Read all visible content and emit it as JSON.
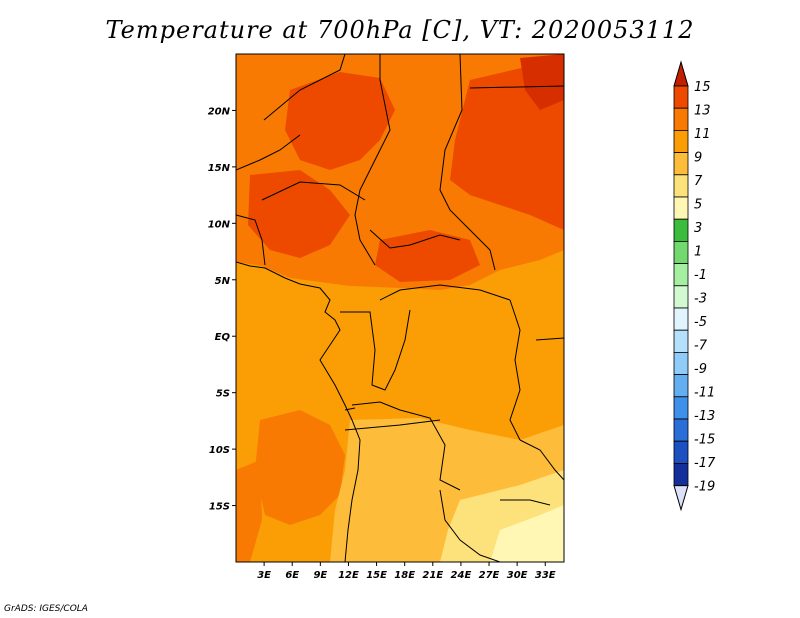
{
  "title": "Temperature at 700hPa [C], VT: 2020053112",
  "credit": "GrADS: IGES/COLA",
  "map": {
    "lon_range": [
      0,
      35
    ],
    "lat_range": [
      -20,
      25
    ],
    "lat_ticks": [
      {
        "lat": 20,
        "label": "20N"
      },
      {
        "lat": 15,
        "label": "15N"
      },
      {
        "lat": 10,
        "label": "10N"
      },
      {
        "lat": 5,
        "label": "5N"
      },
      {
        "lat": 0,
        "label": "EQ"
      },
      {
        "lat": -5,
        "label": "5S"
      },
      {
        "lat": -10,
        "label": "10S"
      },
      {
        "lat": -15,
        "label": "15S"
      }
    ],
    "lon_ticks": [
      {
        "lon": 3,
        "label": "3E"
      },
      {
        "lon": 6,
        "label": "6E"
      },
      {
        "lon": 9,
        "label": "9E"
      },
      {
        "lon": 12,
        "label": "12E"
      },
      {
        "lon": 15,
        "label": "15E"
      },
      {
        "lon": 18,
        "label": "18E"
      },
      {
        "lon": 21,
        "label": "21E"
      },
      {
        "lon": 24,
        "label": "24E"
      },
      {
        "lon": 27,
        "label": "27E"
      },
      {
        "lon": 30,
        "label": "30E"
      },
      {
        "lon": 33,
        "label": "33E"
      }
    ]
  },
  "colorbar": {
    "labels": [
      "15",
      "13",
      "11",
      "9",
      "7",
      "5",
      "3",
      "1",
      "-1",
      "-3",
      "-5",
      "-7",
      "-9",
      "-11",
      "-13",
      "-15",
      "-17",
      "-19"
    ],
    "colors": [
      "#d72e00",
      "#ed4a00",
      "#f87a02",
      "#fb9e06",
      "#fdbd3b",
      "#fde27c",
      "#fff7b3",
      "#3cbc3d",
      "#72d96f",
      "#a5efa1",
      "#d3f9d1",
      "#e1f5fe",
      "#b5e0fb",
      "#8fcdf8",
      "#62aef1",
      "#3f90e8",
      "#2a6fd8",
      "#1d50c0",
      "#152f9a",
      "#0a0d66"
    ],
    "top_arrow_color": "#c41e00",
    "bottom_arrow_color": "#dde1f7"
  }
}
